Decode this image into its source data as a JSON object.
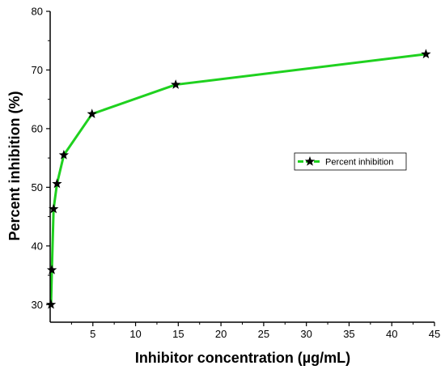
{
  "chart_data": {
    "type": "line",
    "title": "",
    "xlabel": "Inhibitor concentration (µg/mL)",
    "ylabel": "Percent inhibition (%)",
    "xlim": [
      0,
      45
    ],
    "ylim": [
      27,
      80
    ],
    "xticks": [
      5,
      10,
      15,
      20,
      25,
      30,
      35,
      40,
      45
    ],
    "yticks": [
      30,
      40,
      50,
      60,
      70,
      80
    ],
    "grid": false,
    "legend_position": "right",
    "series": [
      {
        "name": "Percent inhibition",
        "color": "#1fd11f",
        "marker": "star",
        "x": [
          0.1,
          0.2,
          0.4,
          0.8,
          1.6,
          4.9,
          14.7,
          44.0
        ],
        "y": [
          30.0,
          35.9,
          46.3,
          50.6,
          55.5,
          62.5,
          67.5,
          72.7
        ]
      }
    ]
  }
}
